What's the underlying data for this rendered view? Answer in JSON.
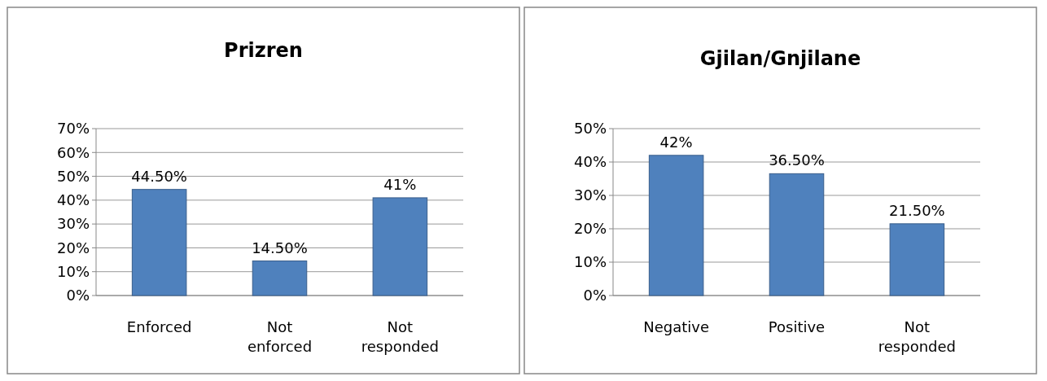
{
  "chart_data": [
    {
      "type": "bar",
      "title": "Prizren",
      "categories": [
        "Enforced",
        "Not enforced",
        "Not responded"
      ],
      "values": [
        44.5,
        14.5,
        41
      ],
      "value_labels": [
        "44.50%",
        "14.50%",
        "41%"
      ],
      "color": "#4f81bd",
      "ylim": [
        0,
        70
      ],
      "yticks": [
        {
          "value": 0,
          "label": "0%"
        },
        {
          "value": 10,
          "label": "10%"
        },
        {
          "value": 20,
          "label": "20%"
        },
        {
          "value": 30,
          "label": "30%"
        },
        {
          "value": 40,
          "label": "40%"
        },
        {
          "value": 50,
          "label": "50%"
        },
        {
          "value": 60,
          "label": "60%"
        },
        {
          "value": 70,
          "label": "70%"
        }
      ],
      "grid": "y"
    },
    {
      "type": "bar",
      "title": "Gjilan/Gnjilane",
      "categories": [
        "Negative",
        "Positive",
        "Not responded"
      ],
      "values": [
        42,
        36.5,
        21.5
      ],
      "value_labels": [
        "42%",
        "36.50%",
        "21.50%"
      ],
      "color": "#4f81bd",
      "ylim": [
        0,
        50
      ],
      "yticks": [
        {
          "value": 0,
          "label": "0%"
        },
        {
          "value": 10,
          "label": "10%"
        },
        {
          "value": 20,
          "label": "20%"
        },
        {
          "value": 30,
          "label": "30%"
        },
        {
          "value": 40,
          "label": "40%"
        },
        {
          "value": 50,
          "label": "50%"
        }
      ],
      "grid": "y"
    }
  ]
}
